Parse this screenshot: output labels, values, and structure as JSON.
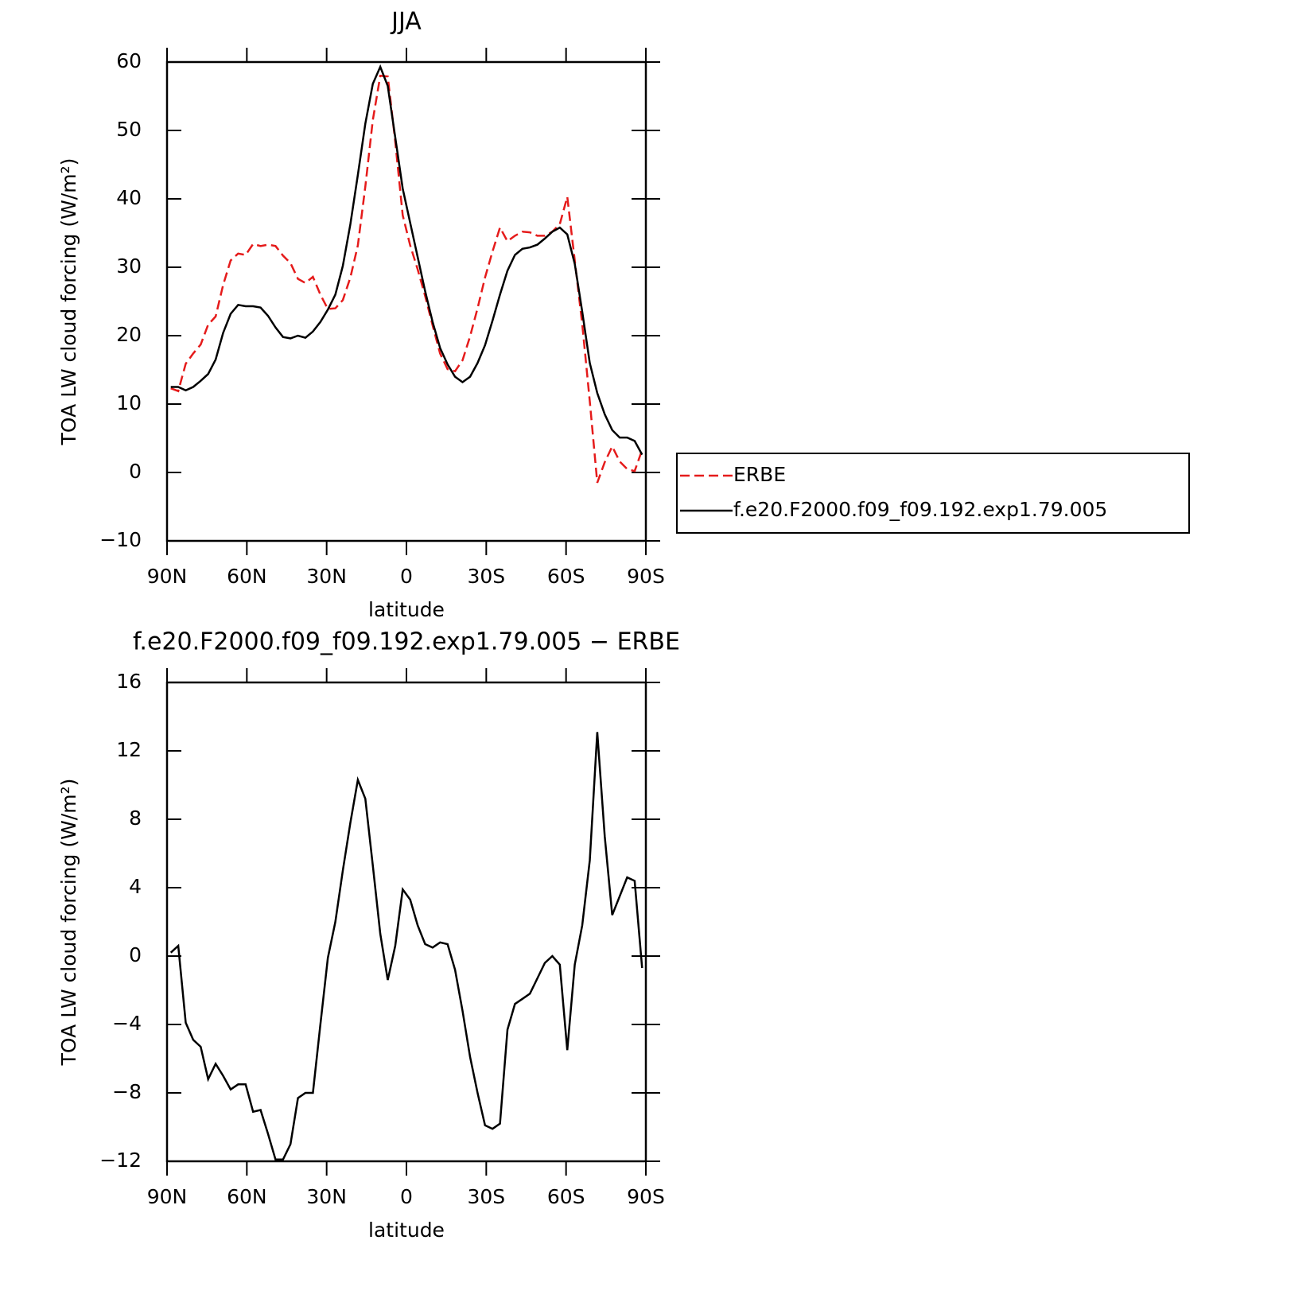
{
  "chart_data": [
    {
      "type": "line",
      "title": "JJA",
      "xlabel": "latitude",
      "ylabel": "TOA LW cloud forcing (W/m²)",
      "x": [
        88.59,
        85.78,
        82.97,
        80.16,
        77.34,
        74.53,
        71.72,
        68.91,
        66.09,
        63.28,
        60.47,
        57.66,
        54.84,
        52.03,
        49.22,
        46.41,
        43.59,
        40.78,
        37.97,
        35.16,
        32.34,
        29.53,
        26.72,
        23.91,
        21.09,
        18.28,
        15.47,
        12.66,
        9.84,
        7.03,
        4.22,
        1.41,
        -1.41,
        -4.22,
        -7.03,
        -9.84,
        -12.66,
        -15.47,
        -18.28,
        -21.09,
        -23.91,
        -26.72,
        -29.53,
        -32.34,
        -35.16,
        -37.97,
        -40.78,
        -43.59,
        -46.41,
        -49.22,
        -52.03,
        -54.84,
        -57.66,
        -60.47,
        -63.28,
        -66.09,
        -68.91,
        -71.72,
        -74.53,
        -77.34,
        -80.16,
        -82.97,
        -85.78,
        -88.59
      ],
      "series": [
        {
          "name": "ERBE",
          "color": "#e51b1b",
          "style": "dashed",
          "values": [
            12.3,
            11.9,
            15.9,
            17.4,
            18.7,
            21.6,
            22.8,
            27.4,
            31.0,
            32.0,
            31.8,
            33.4,
            33.1,
            33.3,
            33.1,
            31.7,
            30.6,
            28.3,
            27.7,
            28.6,
            26.0,
            23.9,
            24.0,
            25.2,
            28.5,
            33.2,
            41.8,
            51.5,
            58.0,
            57.9,
            48.4,
            37.6,
            33.2,
            29.7,
            25.8,
            21.5,
            17.4,
            15.1,
            14.8,
            16.4,
            19.9,
            24.0,
            28.5,
            32.3,
            35.8,
            33.8,
            34.6,
            35.2,
            35.1,
            34.6,
            34.6,
            35.2,
            36.3,
            40.3,
            31.0,
            21.7,
            10.4,
            -1.5,
            1.5,
            3.8,
            1.6,
            0.5,
            0.2,
            3.3
          ]
        },
        {
          "name": "f.e20.F2000.f09_f09.192.exp1.79.005",
          "color": "#000000",
          "style": "solid",
          "values": [
            12.5,
            12.5,
            12.0,
            12.5,
            13.4,
            14.4,
            16.5,
            20.4,
            23.2,
            24.5,
            24.3,
            24.3,
            24.1,
            22.9,
            21.2,
            19.8,
            19.6,
            20.0,
            19.7,
            20.6,
            22.0,
            23.8,
            26.0,
            30.2,
            36.3,
            43.5,
            51.0,
            56.8,
            59.3,
            56.5,
            49.0,
            41.5,
            36.5,
            31.5,
            26.5,
            22.0,
            18.2,
            15.8,
            14.0,
            13.2,
            14.0,
            16.0,
            18.6,
            22.2,
            26.0,
            29.5,
            31.8,
            32.7,
            32.9,
            33.3,
            34.2,
            35.2,
            35.8,
            34.8,
            30.5,
            23.5,
            16.0,
            11.6,
            8.5,
            6.2,
            5.1,
            5.1,
            4.6,
            2.6
          ]
        }
      ],
      "xlim": [
        90,
        -90
      ],
      "xticks": [
        {
          "value": 90,
          "label": "90N"
        },
        {
          "value": 60,
          "label": "60N"
        },
        {
          "value": 30,
          "label": "30N"
        },
        0,
        {
          "value": -30,
          "label": "30S"
        },
        {
          "value": -60,
          "label": "60S"
        },
        {
          "value": -90,
          "label": "90S"
        }
      ],
      "ylim": [
        -10,
        60
      ],
      "yticks": [
        {
          "value": -10,
          "label": "−10"
        },
        0,
        10,
        20,
        30,
        40,
        50,
        60
      ],
      "legend": "right"
    },
    {
      "type": "line",
      "title": "f.e20.F2000.f09_f09.192.exp1.79.005 − ERBE",
      "xlabel": "latitude",
      "ylabel": "TOA LW cloud forcing (W/m²)",
      "x": [
        88.59,
        85.78,
        82.97,
        80.16,
        77.34,
        74.53,
        71.72,
        68.91,
        66.09,
        63.28,
        60.47,
        57.66,
        54.84,
        52.03,
        49.22,
        46.41,
        43.59,
        40.78,
        37.97,
        35.16,
        32.34,
        29.53,
        26.72,
        23.91,
        21.09,
        18.28,
        15.47,
        12.66,
        9.84,
        7.03,
        4.22,
        1.41,
        -1.41,
        -4.22,
        -7.03,
        -9.84,
        -12.66,
        -15.47,
        -18.28,
        -21.09,
        -23.91,
        -26.72,
        -29.53,
        -32.34,
        -35.16,
        -37.97,
        -40.78,
        -43.59,
        -46.41,
        -49.22,
        -52.03,
        -54.84,
        -57.66,
        -60.47,
        -63.28,
        -66.09,
        -68.91,
        -71.72,
        -74.53,
        -77.34,
        -80.16,
        -82.97,
        -85.78,
        -88.59
      ],
      "series": [
        {
          "color": "#000000",
          "style": "solid",
          "values": [
            0.2,
            0.6,
            -3.9,
            -4.9,
            -5.3,
            -7.2,
            -6.3,
            -7.0,
            -7.8,
            -7.5,
            -7.5,
            -9.1,
            -9.0,
            -10.4,
            -11.9,
            -11.9,
            -11.0,
            -8.3,
            -8.0,
            -8.0,
            -4.0,
            -0.1,
            2.0,
            5.0,
            7.8,
            10.3,
            9.2,
            5.3,
            1.3,
            -1.4,
            0.6,
            3.9,
            3.3,
            1.8,
            0.7,
            0.5,
            0.8,
            0.7,
            -0.8,
            -3.2,
            -5.9,
            -8.0,
            -9.9,
            -10.1,
            -9.8,
            -4.3,
            -2.8,
            -2.5,
            -2.2,
            -1.3,
            -0.4,
            0.0,
            -0.5,
            -5.5,
            -0.5,
            1.8,
            5.6,
            13.1,
            7.0,
            2.4,
            3.5,
            4.6,
            4.4,
            -0.7
          ]
        }
      ],
      "xlim": [
        90,
        -90
      ],
      "xticks": [
        {
          "value": 90,
          "label": "90N"
        },
        {
          "value": 60,
          "label": "60N"
        },
        {
          "value": 30,
          "label": "30N"
        },
        0,
        {
          "value": -30,
          "label": "30S"
        },
        {
          "value": -60,
          "label": "60S"
        },
        {
          "value": -90,
          "label": "90S"
        }
      ],
      "ylim": [
        -12,
        16
      ],
      "yticks": [
        {
          "value": -12,
          "label": "−12"
        },
        {
          "value": -8,
          "label": "−8"
        },
        {
          "value": -4,
          "label": "−4"
        },
        0,
        4,
        8,
        12,
        16
      ]
    }
  ]
}
